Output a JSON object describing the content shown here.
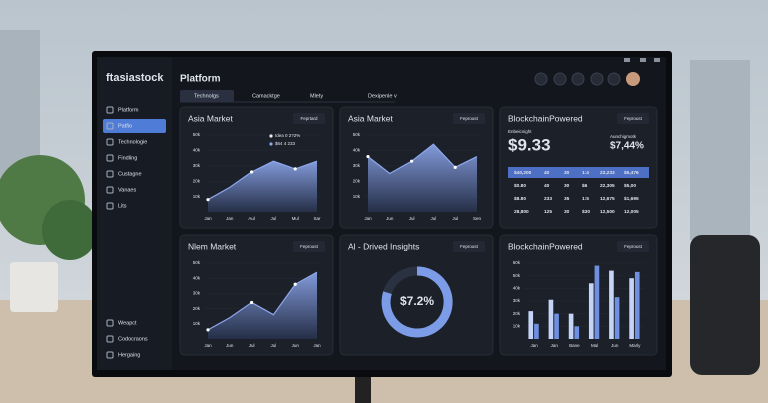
{
  "header": {
    "brand": "ftasiastock",
    "title": "Platform"
  },
  "tabs": [
    "Technolgs",
    "Camacktge",
    "Mlety",
    "Dexipenle v"
  ],
  "sidebar": {
    "top": [
      "Platform",
      "Patfio",
      "Technologie",
      "Findling",
      "Custagne",
      "Vanaes",
      "Lits"
    ],
    "bottom": [
      "Weapct",
      "Codocraons",
      "Hergaing"
    ]
  },
  "stats_panel": {
    "title": "BlockchainPowered",
    "button": "Feproust",
    "left_label": "Enbeicnight",
    "left_value": "$9.33",
    "right_label": "Aunchigmotk",
    "right_value": "$7,44%",
    "table": [
      [
        "$40,200",
        "40",
        "30",
        "1:4",
        "23,233",
        "$5,476"
      ],
      [
        "$0.80",
        "40",
        "30",
        "$6",
        "22,305",
        "$5,00"
      ],
      [
        "$8.80",
        "233",
        "35",
        "1:5",
        "12,675",
        "$1,695"
      ],
      [
        "28,800",
        "125",
        "30",
        "$30",
        "12,500",
        "12,005"
      ]
    ]
  },
  "insights_panel": {
    "title": "Al - Drived Insights",
    "button": "Feproust",
    "center": "$7.2%"
  },
  "chart_data": [
    {
      "type": "area",
      "title": "Asia Market",
      "button": "Feprtard",
      "legend": [
        "Idea 0 2?2%",
        "$64 4 233"
      ],
      "categories": [
        "Jan",
        "Jan",
        "Aul",
        "Jul",
        "Mul",
        "Sar"
      ],
      "values": [
        8,
        16,
        26,
        33,
        28,
        33
      ],
      "color": "#8ea8ee",
      "ylim": [
        0,
        50
      ],
      "yticks": [
        {
          "value": 10,
          "label": "10k"
        },
        {
          "value": 20,
          "label": "20k"
        },
        {
          "value": 30,
          "label": "30k"
        },
        {
          "value": 40,
          "label": "40k"
        },
        {
          "value": 50,
          "label": "50k"
        }
      ]
    },
    {
      "type": "area",
      "title": "Asia Market",
      "button": "Feproust",
      "categories": [
        "Jan",
        "Jun",
        "Jul",
        "Jul",
        "Jul",
        "Sen"
      ],
      "values": [
        36,
        25,
        33,
        44,
        29,
        36
      ],
      "color": "#8ea8ee",
      "ylim": [
        0,
        50
      ],
      "yticks": [
        {
          "value": 10,
          "label": "10k"
        },
        {
          "value": 20,
          "label": "20k"
        },
        {
          "value": 30,
          "label": "30k"
        },
        {
          "value": 40,
          "label": "40k"
        },
        {
          "value": 50,
          "label": "50k"
        }
      ]
    },
    {
      "type": "area",
      "title": "Nlem Market",
      "button": "Feproust",
      "categories": [
        "Jan",
        "Jun",
        "Jul",
        "Jul",
        "Jun",
        "Jan"
      ],
      "values": [
        6,
        14,
        24,
        16,
        36,
        44
      ],
      "color": "#8ea8ee",
      "ylim": [
        0,
        50
      ],
      "yticks": [
        {
          "value": 10,
          "label": "10k"
        },
        {
          "value": 20,
          "label": "20k"
        },
        {
          "value": 30,
          "label": "30k"
        },
        {
          "value": 40,
          "label": "40k"
        },
        {
          "value": 50,
          "label": "50k"
        }
      ]
    },
    {
      "type": "bar",
      "title": "BlockchainPowered",
      "button": "Feproust",
      "categories": [
        "Jan",
        "Jan",
        "Bane",
        "Mal",
        "Jun",
        "Marly"
      ],
      "series": [
        {
          "color": "#c5d3f7",
          "values": [
            22,
            31,
            20,
            44,
            54,
            48
          ]
        },
        {
          "color": "#6f8fe0",
          "values": [
            12,
            20,
            10,
            58,
            33,
            53
          ]
        }
      ],
      "ylim": [
        0,
        60
      ],
      "yticks": [
        {
          "value": 10,
          "label": "10k"
        },
        {
          "value": 20,
          "label": "20k"
        },
        {
          "value": 30,
          "label": "30k"
        },
        {
          "value": 40,
          "label": "40k"
        },
        {
          "value": 50,
          "label": "50k"
        },
        {
          "value": 60,
          "label": "60k"
        }
      ]
    }
  ]
}
